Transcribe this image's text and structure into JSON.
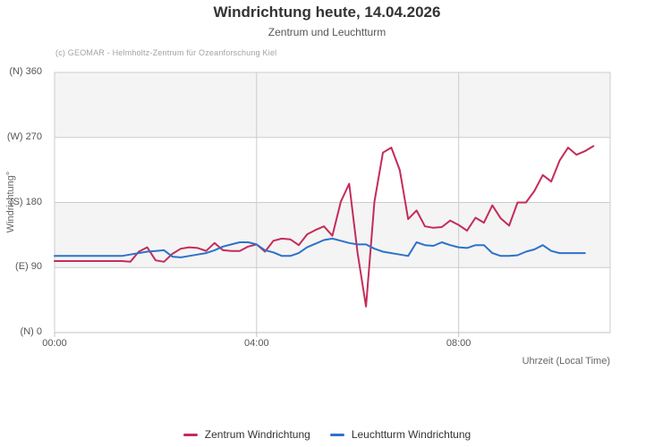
{
  "chart_data": {
    "type": "line",
    "title": "Windrichtung heute, 14.04.2026",
    "subtitle": "Zentrum und Leuchtturm",
    "credit": "(c) GEOMAR - Helmholtz-Zentrum für Ozeanforschung Kiel",
    "xlabel": "Uhrzeit (Local Time)",
    "ylabel": "Windrichtung°",
    "ylim": [
      0,
      360
    ],
    "xlim_hours": [
      0,
      11
    ],
    "grid_on": true,
    "grid_color": "#cccccc",
    "band_color": "#f4f4f4",
    "band_ranges_deg": [
      [
        270,
        360
      ],
      [
        90,
        180
      ]
    ],
    "legend_position": "bottom-center",
    "y_ticks": [
      {
        "label": "(N) 360",
        "value": 360
      },
      {
        "label": "(W) 270",
        "value": 270
      },
      {
        "label": "(S) 180",
        "value": 180
      },
      {
        "label": "(E) 90",
        "value": 90
      },
      {
        "label": "(N) 0",
        "value": 0
      }
    ],
    "x_ticks": [
      {
        "label": "00:00",
        "hour": 0
      },
      {
        "label": "04:00",
        "hour": 4
      },
      {
        "label": "08:00",
        "hour": 8
      }
    ],
    "series": [
      {
        "name": "Zentrum Windrichtung",
        "color": "#c42c58",
        "start_time": "00:00",
        "step_minutes": 10,
        "values": [
          99,
          99,
          99,
          99,
          99,
          99,
          99,
          99,
          99,
          98,
          112,
          118,
          100,
          98,
          109,
          116,
          118,
          117,
          113,
          124,
          114,
          113,
          113,
          119,
          122,
          112,
          127,
          130,
          129,
          121,
          136,
          142,
          147,
          134,
          181,
          206,
          110,
          36,
          181,
          249,
          256,
          225,
          157,
          169,
          147,
          145,
          146,
          155,
          149,
          141,
          159,
          152,
          176,
          158,
          148,
          180,
          180,
          196,
          218,
          209,
          238,
          256,
          246,
          251,
          258
        ]
      },
      {
        "name": "Leuchtturm Windrichtung",
        "color": "#2d72c8",
        "start_time": "00:00",
        "step_minutes": 10,
        "values": [
          106,
          106,
          106,
          106,
          106,
          106,
          106,
          106,
          106,
          108,
          110,
          112,
          113,
          114,
          105,
          104,
          106,
          108,
          110,
          114,
          119,
          122,
          125,
          125,
          122,
          114,
          111,
          106,
          106,
          110,
          118,
          123,
          128,
          130,
          127,
          124,
          122,
          122,
          116,
          112,
          110,
          108,
          106,
          125,
          121,
          120,
          125,
          121,
          118,
          117,
          121,
          121,
          110,
          106,
          106,
          107,
          112,
          115,
          121,
          113,
          110,
          110,
          110,
          110
        ]
      }
    ]
  }
}
